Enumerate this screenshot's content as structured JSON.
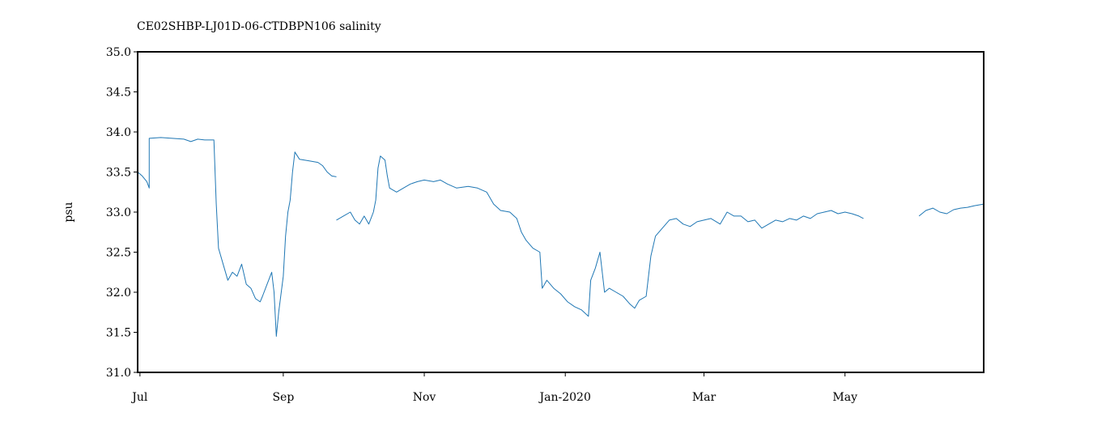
{
  "chart_data": {
    "type": "line",
    "title": "CE02SHBP-LJ01D-06-CTDBPN106 salinity",
    "xlabel": "",
    "ylabel": "psu",
    "xlim": [
      "2019-06-30",
      "2020-06-30"
    ],
    "ylim": [
      31.0,
      35.0
    ],
    "grid": false,
    "legend": "none",
    "y_ticks": [
      {
        "value": 31.0,
        "label": "31.0"
      },
      {
        "value": 31.5,
        "label": "31.5"
      },
      {
        "value": 32.0,
        "label": "32.0"
      },
      {
        "value": 32.5,
        "label": "32.5"
      },
      {
        "value": 33.0,
        "label": "33.0"
      },
      {
        "value": 33.5,
        "label": "33.5"
      },
      {
        "value": 34.0,
        "label": "34.0"
      },
      {
        "value": 34.5,
        "label": "34.5"
      },
      {
        "value": 35.0,
        "label": "35.0"
      }
    ],
    "x_ticks": [
      {
        "value": "2019-07-01",
        "label": "Jul"
      },
      {
        "value": "2019-09-01",
        "label": "Sep"
      },
      {
        "value": "2019-11-01",
        "label": "Nov"
      },
      {
        "value": "2020-01-01",
        "label": "Jan-2020"
      },
      {
        "value": "2020-03-01",
        "label": "Mar"
      },
      {
        "value": "2020-05-01",
        "label": "May"
      }
    ],
    "series": [
      {
        "color": "#1f77b4",
        "segments": [
          [
            [
              "2019-06-30",
              33.5
            ],
            [
              "2019-07-02",
              33.45
            ],
            [
              "2019-07-04",
              33.38
            ],
            [
              "2019-07-05",
              33.3
            ],
            [
              "2019-07-05",
              33.92
            ],
            [
              "2019-07-10",
              33.93
            ],
            [
              "2019-07-15",
              33.92
            ],
            [
              "2019-07-20",
              33.91
            ],
            [
              "2019-07-23",
              33.88
            ],
            [
              "2019-07-26",
              33.91
            ],
            [
              "2019-07-29",
              33.9
            ],
            [
              "2019-08-02",
              33.9
            ],
            [
              "2019-08-03",
              33.1
            ],
            [
              "2019-08-04",
              32.55
            ],
            [
              "2019-08-06",
              32.35
            ],
            [
              "2019-08-08",
              32.15
            ],
            [
              "2019-08-10",
              32.25
            ],
            [
              "2019-08-12",
              32.2
            ],
            [
              "2019-08-14",
              32.35
            ],
            [
              "2019-08-16",
              32.1
            ],
            [
              "2019-08-18",
              32.05
            ],
            [
              "2019-08-20",
              31.92
            ],
            [
              "2019-08-22",
              31.88
            ],
            [
              "2019-08-23",
              31.95
            ],
            [
              "2019-08-25",
              32.1
            ],
            [
              "2019-08-27",
              32.25
            ],
            [
              "2019-08-28",
              32.0
            ],
            [
              "2019-08-29",
              31.45
            ],
            [
              "2019-08-30",
              31.75
            ],
            [
              "2019-09-01",
              32.2
            ],
            [
              "2019-09-02",
              32.7
            ],
            [
              "2019-09-03",
              33.0
            ],
            [
              "2019-09-04",
              33.15
            ],
            [
              "2019-09-05",
              33.5
            ],
            [
              "2019-09-06",
              33.75
            ],
            [
              "2019-09-08",
              33.66
            ],
            [
              "2019-09-12",
              33.64
            ],
            [
              "2019-09-16",
              33.62
            ],
            [
              "2019-09-18",
              33.58
            ],
            [
              "2019-09-20",
              33.5
            ],
            [
              "2019-09-22",
              33.45
            ],
            [
              "2019-09-24",
              33.44
            ]
          ],
          [
            [
              "2019-09-24",
              32.9
            ],
            [
              "2019-09-27",
              32.95
            ],
            [
              "2019-09-30",
              33.0
            ],
            [
              "2019-10-02",
              32.9
            ],
            [
              "2019-10-04",
              32.85
            ],
            [
              "2019-10-06",
              32.95
            ],
            [
              "2019-10-08",
              32.85
            ],
            [
              "2019-10-10",
              33.0
            ],
            [
              "2019-10-11",
              33.15
            ],
            [
              "2019-10-12",
              33.55
            ],
            [
              "2019-10-13",
              33.7
            ],
            [
              "2019-10-15",
              33.65
            ],
            [
              "2019-10-16",
              33.45
            ],
            [
              "2019-10-17",
              33.3
            ],
            [
              "2019-10-20",
              33.25
            ],
            [
              "2019-10-23",
              33.3
            ],
            [
              "2019-10-26",
              33.35
            ],
            [
              "2019-10-29",
              33.38
            ],
            [
              "2019-11-01",
              33.4
            ],
            [
              "2019-11-05",
              33.38
            ],
            [
              "2019-11-08",
              33.4
            ],
            [
              "2019-11-11",
              33.35
            ],
            [
              "2019-11-15",
              33.3
            ],
            [
              "2019-11-20",
              33.32
            ],
            [
              "2019-11-24",
              33.3
            ],
            [
              "2019-11-28",
              33.25
            ],
            [
              "2019-12-01",
              33.1
            ],
            [
              "2019-12-04",
              33.02
            ],
            [
              "2019-12-08",
              33.0
            ],
            [
              "2019-12-11",
              32.92
            ],
            [
              "2019-12-13",
              32.75
            ],
            [
              "2019-12-15",
              32.65
            ],
            [
              "2019-12-18",
              32.55
            ],
            [
              "2019-12-21",
              32.5
            ],
            [
              "2019-12-22",
              32.05
            ],
            [
              "2019-12-24",
              32.15
            ],
            [
              "2019-12-27",
              32.05
            ],
            [
              "2019-12-30",
              31.98
            ],
            [
              "2020-01-02",
              31.88
            ],
            [
              "2020-01-05",
              31.82
            ],
            [
              "2020-01-08",
              31.78
            ],
            [
              "2020-01-11",
              31.7
            ],
            [
              "2020-01-12",
              32.15
            ],
            [
              "2020-01-14",
              32.3
            ],
            [
              "2020-01-16",
              32.5
            ],
            [
              "2020-01-18",
              32.0
            ],
            [
              "2020-01-20",
              32.05
            ],
            [
              "2020-01-23",
              32.0
            ],
            [
              "2020-01-26",
              31.95
            ],
            [
              "2020-01-29",
              31.85
            ],
            [
              "2020-01-31",
              31.8
            ],
            [
              "2020-02-02",
              31.9
            ],
            [
              "2020-02-05",
              31.95
            ],
            [
              "2020-02-06",
              32.2
            ],
            [
              "2020-02-07",
              32.45
            ],
            [
              "2020-02-09",
              32.7
            ],
            [
              "2020-02-12",
              32.8
            ],
            [
              "2020-02-15",
              32.9
            ],
            [
              "2020-02-18",
              32.92
            ],
            [
              "2020-02-21",
              32.85
            ],
            [
              "2020-02-24",
              32.82
            ],
            [
              "2020-02-27",
              32.88
            ],
            [
              "2020-03-01",
              32.9
            ],
            [
              "2020-03-04",
              32.92
            ],
            [
              "2020-03-08",
              32.85
            ],
            [
              "2020-03-11",
              33.0
            ],
            [
              "2020-03-14",
              32.95
            ],
            [
              "2020-03-17",
              32.95
            ],
            [
              "2020-03-20",
              32.88
            ],
            [
              "2020-03-23",
              32.9
            ],
            [
              "2020-03-26",
              32.8
            ],
            [
              "2020-03-29",
              32.85
            ],
            [
              "2020-04-01",
              32.9
            ],
            [
              "2020-04-04",
              32.88
            ],
            [
              "2020-04-07",
              32.92
            ],
            [
              "2020-04-10",
              32.9
            ],
            [
              "2020-04-13",
              32.95
            ],
            [
              "2020-04-16",
              32.92
            ],
            [
              "2020-04-19",
              32.98
            ],
            [
              "2020-04-22",
              33.0
            ],
            [
              "2020-04-25",
              33.02
            ],
            [
              "2020-04-28",
              32.98
            ],
            [
              "2020-05-01",
              33.0
            ],
            [
              "2020-05-04",
              32.98
            ],
            [
              "2020-05-07",
              32.95
            ],
            [
              "2020-05-09",
              32.92
            ]
          ],
          [
            [
              "2020-06-02",
              32.95
            ],
            [
              "2020-06-05",
              33.02
            ],
            [
              "2020-06-08",
              33.05
            ],
            [
              "2020-06-11",
              33.0
            ],
            [
              "2020-06-14",
              32.98
            ],
            [
              "2020-06-17",
              33.03
            ],
            [
              "2020-06-20",
              33.05
            ],
            [
              "2020-06-23",
              33.06
            ],
            [
              "2020-06-26",
              33.08
            ],
            [
              "2020-06-30",
              33.1
            ]
          ]
        ]
      }
    ]
  }
}
